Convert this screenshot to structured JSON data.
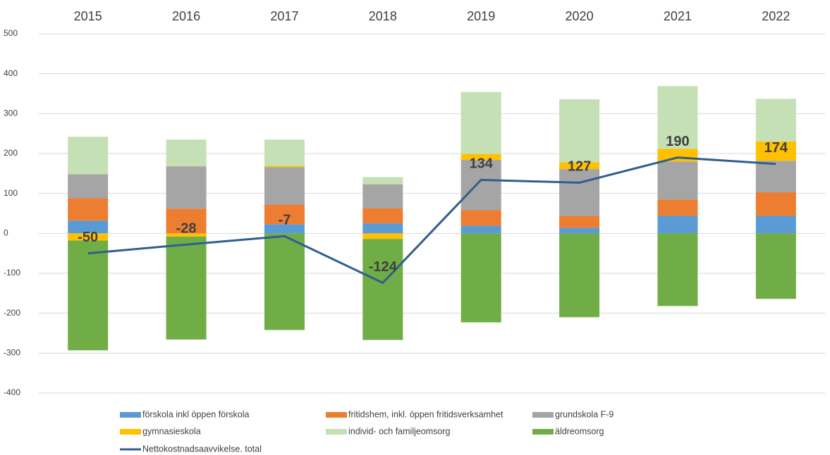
{
  "chart_data": {
    "type": "bar",
    "stacked": true,
    "categories": [
      "2015",
      "2016",
      "2017",
      "2018",
      "2019",
      "2020",
      "2021",
      "2022"
    ],
    "series": [
      {
        "name": "förskola inkl öppen förskola",
        "color": "#5b9bd5",
        "values": [
          32,
          0,
          23,
          25,
          19,
          14,
          44,
          44
        ]
      },
      {
        "name": "fritidshem, inkl. öppen fritidsverksamhet",
        "color": "#ed7d31",
        "values": [
          56,
          62,
          49,
          38,
          39,
          30,
          41,
          59
        ]
      },
      {
        "name": "grundskola F-9",
        "color": "#a5a5a5",
        "values": [
          60,
          106,
          94,
          60,
          126,
          117,
          95,
          79
        ]
      },
      {
        "name": "gymnasieskola",
        "color": "#ffc000",
        "values": [
          -18,
          -8,
          3,
          -14,
          15,
          17,
          32,
          48
        ]
      },
      {
        "name": "individ- och familjeomsorg",
        "color": "#c5e0b4",
        "values": [
          94,
          67,
          66,
          18,
          155,
          158,
          157,
          107
        ]
      },
      {
        "name": "äldreomsorg",
        "color": "#70ad47",
        "values": [
          -275,
          -258,
          -242,
          -253,
          -223,
          -210,
          -182,
          -164
        ]
      },
      {
        "name": "Nettokostnadsaavvikelse. total",
        "color": "#2f5f8f",
        "type": "line",
        "values": [
          -50,
          -28,
          -7,
          -124,
          134,
          127,
          190,
          174
        ]
      }
    ],
    "ylim": [
      -400,
      500
    ],
    "yticks": [
      -400,
      -300,
      -200,
      -100,
      0,
      100,
      200,
      300,
      400,
      500
    ],
    "grid": true,
    "legend": "bottom"
  }
}
